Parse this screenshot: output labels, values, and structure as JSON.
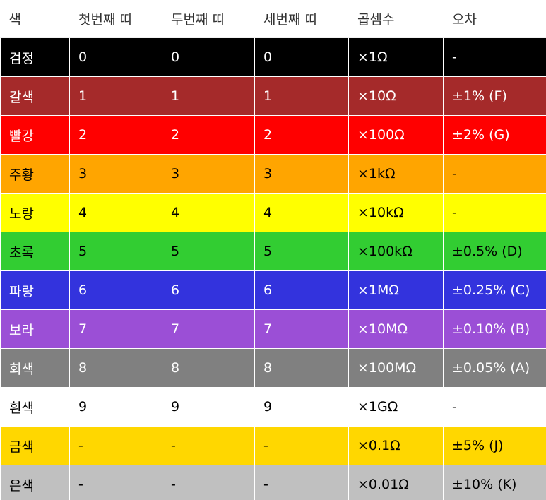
{
  "headers": {
    "color": "색",
    "band1": "첫번째 띠",
    "band2": "두번째 띠",
    "band3": "세번째 띠",
    "multiplier": "곱셈수",
    "tolerance": "오차"
  },
  "rows": [
    {
      "color": "검정",
      "band1": "0",
      "band2": "0",
      "band3": "0",
      "multiplier": "×1Ω",
      "tolerance": "-",
      "bg": "#000000",
      "fg": "#ffffff"
    },
    {
      "color": "갈색",
      "band1": "1",
      "band2": "1",
      "band3": "1",
      "multiplier": "×10Ω",
      "tolerance": "±1% (F)",
      "bg": "#a52a2a",
      "fg": "#ffffff"
    },
    {
      "color": "빨강",
      "band1": "2",
      "band2": "2",
      "band3": "2",
      "multiplier": "×100Ω",
      "tolerance": "±2% (G)",
      "bg": "#ff0000",
      "fg": "#ffffff"
    },
    {
      "color": "주황",
      "band1": "3",
      "band2": "3",
      "band3": "3",
      "multiplier": "×1kΩ",
      "tolerance": "-",
      "bg": "#ffa500",
      "fg": "#000000"
    },
    {
      "color": "노랑",
      "band1": "4",
      "band2": "4",
      "band3": "4",
      "multiplier": "×10kΩ",
      "tolerance": "-",
      "bg": "#ffff00",
      "fg": "#000000"
    },
    {
      "color": "초록",
      "band1": "5",
      "band2": "5",
      "band3": "5",
      "multiplier": "×100kΩ",
      "tolerance": "±0.5% (D)",
      "bg": "#32cd32",
      "fg": "#000000"
    },
    {
      "color": "파랑",
      "band1": "6",
      "band2": "6",
      "band3": "6",
      "multiplier": "×1MΩ",
      "tolerance": "±0.25% (C)",
      "bg": "#3333dd",
      "fg": "#ffffff"
    },
    {
      "color": "보라",
      "band1": "7",
      "band2": "7",
      "band3": "7",
      "multiplier": "×10MΩ",
      "tolerance": "±0.10% (B)",
      "bg": "#9b4fd6",
      "fg": "#ffffff"
    },
    {
      "color": "회색",
      "band1": "8",
      "band2": "8",
      "band3": "8",
      "multiplier": "×100MΩ",
      "tolerance": "±0.05% (A)",
      "bg": "#808080",
      "fg": "#ffffff"
    },
    {
      "color": "흰색",
      "band1": "9",
      "band2": "9",
      "band3": "9",
      "multiplier": "×1GΩ",
      "tolerance": "-",
      "bg": "#ffffff",
      "fg": "#000000"
    },
    {
      "color": "금색",
      "band1": "-",
      "band2": "-",
      "band3": "-",
      "multiplier": "×0.1Ω",
      "tolerance": "±5% (J)",
      "bg": "#ffd700",
      "fg": "#000000"
    },
    {
      "color": "은색",
      "band1": "-",
      "band2": "-",
      "band3": "-",
      "multiplier": "×0.01Ω",
      "tolerance": "±10% (K)",
      "bg": "#c0c0c0",
      "fg": "#000000"
    }
  ]
}
